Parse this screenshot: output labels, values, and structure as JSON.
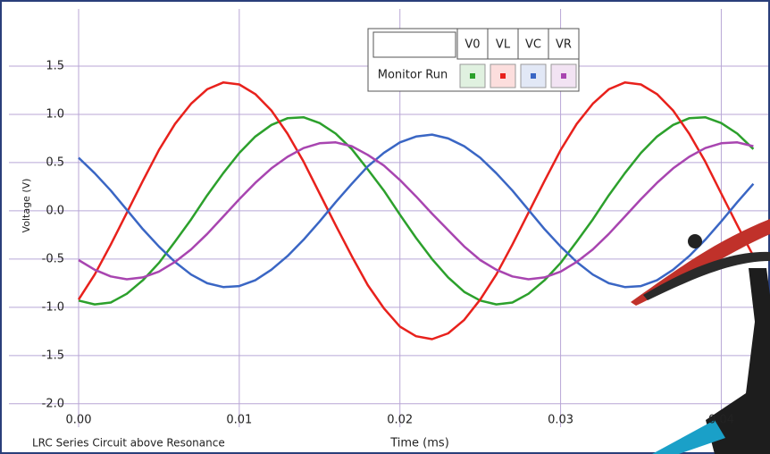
{
  "chart_data": {
    "type": "line",
    "title": "LRC Series Circuit above Resonance",
    "x_label": "Time (ms)",
    "y_label": "Voltage (V)",
    "legend_header": "Monitor Run",
    "x": [
      0,
      0.001,
      0.002,
      0.003,
      0.004,
      0.005,
      0.006,
      0.007,
      0.008,
      0.009,
      0.01,
      0.011,
      0.012,
      0.013,
      0.014,
      0.015,
      0.016,
      0.017,
      0.018,
      0.019,
      0.02,
      0.021,
      0.022,
      0.023,
      0.024,
      0.025,
      0.026,
      0.027,
      0.028,
      0.029,
      0.03,
      0.031,
      0.032,
      0.033,
      0.034,
      0.035,
      0.036,
      0.037,
      0.038,
      0.039,
      0.04,
      0.041,
      0.042
    ],
    "series": [
      {
        "name": "V0",
        "color": "#2ca02c",
        "values": [
          -0.93,
          -0.97,
          -0.95,
          -0.86,
          -0.72,
          -0.54,
          -0.32,
          -0.09,
          0.16,
          0.39,
          0.6,
          0.77,
          0.89,
          0.96,
          0.97,
          0.91,
          0.8,
          0.64,
          0.43,
          0.21,
          -0.04,
          -0.28,
          -0.5,
          -0.69,
          -0.84,
          -0.93,
          -0.97,
          -0.95,
          -0.86,
          -0.72,
          -0.54,
          -0.32,
          -0.09,
          0.16,
          0.39,
          0.6,
          0.77,
          0.89,
          0.96,
          0.97,
          0.91,
          0.8,
          0.64
        ]
      },
      {
        "name": "VL",
        "color": "#e8211c",
        "values": [
          -0.92,
          -0.66,
          -0.35,
          -0.02,
          0.31,
          0.63,
          0.9,
          1.11,
          1.26,
          1.33,
          1.31,
          1.21,
          1.04,
          0.8,
          0.51,
          0.18,
          -0.15,
          -0.47,
          -0.77,
          -1.01,
          -1.2,
          -1.3,
          -1.33,
          -1.27,
          -1.13,
          -0.92,
          -0.66,
          -0.35,
          -0.02,
          0.31,
          0.63,
          0.9,
          1.11,
          1.26,
          1.33,
          1.31,
          1.21,
          1.04,
          0.8,
          0.51,
          0.18,
          -0.15,
          -0.47
        ]
      },
      {
        "name": "VC",
        "color": "#3a66c4",
        "values": [
          0.55,
          0.39,
          0.21,
          0.01,
          -0.19,
          -0.37,
          -0.53,
          -0.66,
          -0.75,
          -0.79,
          -0.78,
          -0.72,
          -0.61,
          -0.47,
          -0.3,
          -0.11,
          0.09,
          0.28,
          0.46,
          0.6,
          0.71,
          0.77,
          0.79,
          0.75,
          0.67,
          0.55,
          0.39,
          0.21,
          0.01,
          -0.19,
          -0.37,
          -0.53,
          -0.66,
          -0.75,
          -0.79,
          -0.78,
          -0.72,
          -0.61,
          -0.47,
          -0.3,
          -0.11,
          0.09,
          0.28
        ]
      },
      {
        "name": "VR",
        "color": "#a845b0",
        "values": [
          -0.51,
          -0.61,
          -0.68,
          -0.71,
          -0.69,
          -0.63,
          -0.53,
          -0.4,
          -0.24,
          -0.06,
          0.12,
          0.29,
          0.44,
          0.56,
          0.65,
          0.7,
          0.71,
          0.67,
          0.58,
          0.47,
          0.32,
          0.15,
          -0.03,
          -0.2,
          -0.37,
          -0.51,
          -0.61,
          -0.68,
          -0.71,
          -0.69,
          -0.63,
          -0.53,
          -0.4,
          -0.24,
          -0.06,
          0.12,
          0.29,
          0.44,
          0.56,
          0.65,
          0.7,
          0.71,
          0.67
        ]
      }
    ],
    "xlim": [
      0,
      0.0427
    ],
    "ylim": [
      -2.15,
      2.0
    ],
    "xticks": [
      {
        "value": 0,
        "label": "0.00"
      },
      0.01,
      0.02,
      0.03,
      0.04
    ],
    "yticks": [
      {
        "value": -2,
        "label": "-2.0"
      },
      -1.5,
      {
        "value": -1,
        "label": "-1.0"
      },
      -0.5,
      {
        "value": 0,
        "label": "0.0"
      },
      0.5,
      {
        "value": 1,
        "label": "1.0"
      },
      1.5
    ],
    "grid": true
  }
}
